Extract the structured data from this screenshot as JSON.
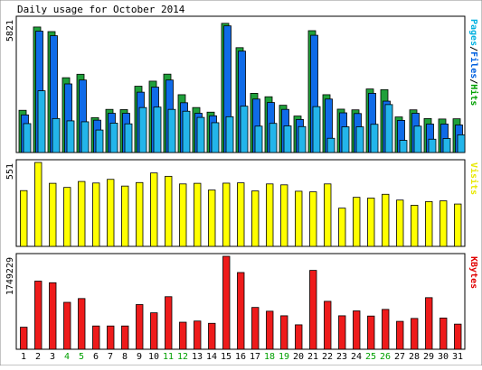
{
  "chart_data": [
    {
      "type": "bar",
      "title": "Daily usage for October 2014",
      "panel": "hits-files-pages",
      "ylabel_max": "5821",
      "ylim": [
        0,
        5821
      ],
      "legend": {
        "parts": [
          {
            "text": "Pages",
            "color": "#00B0E0"
          },
          {
            "text": "/",
            "color": "#000000"
          },
          {
            "text": "Files",
            "color": "#0060E0"
          },
          {
            "text": "/",
            "color": "#000000"
          },
          {
            "text": "Hits",
            "color": "#00A000"
          }
        ],
        "placement": "right"
      },
      "categories": [
        "1",
        "2",
        "3",
        "4",
        "5",
        "6",
        "7",
        "8",
        "9",
        "10",
        "11",
        "12",
        "13",
        "14",
        "15",
        "16",
        "17",
        "18",
        "19",
        "20",
        "21",
        "22",
        "23",
        "24",
        "25",
        "26",
        "27",
        "28",
        "29",
        "30",
        "31"
      ],
      "weekend_days": [
        "4",
        "5",
        "11",
        "12",
        "18",
        "19",
        "25",
        "26"
      ],
      "series": [
        {
          "name": "Hits",
          "color": "#1FA03A",
          "values": [
            1840,
            5470,
            5270,
            3260,
            3410,
            1520,
            1880,
            1870,
            2890,
            3110,
            3415,
            2520,
            1960,
            1760,
            5630,
            4570,
            2580,
            2430,
            2060,
            1590,
            5310,
            2520,
            1890,
            1860,
            2770,
            2740,
            1550,
            1860,
            1480,
            1460,
            1470
          ]
        },
        {
          "name": "Files",
          "color": "#0F6BE8",
          "values": [
            1640,
            5290,
            5090,
            2990,
            3160,
            1410,
            1710,
            1710,
            2630,
            2850,
            3160,
            2170,
            1710,
            1600,
            5520,
            4420,
            2330,
            2180,
            1880,
            1440,
            5110,
            2330,
            1730,
            1700,
            2580,
            2240,
            1400,
            1710,
            1240,
            1240,
            1200
          ]
        },
        {
          "name": "Pages",
          "color": "#23B5EA",
          "values": [
            1260,
            2690,
            1480,
            1380,
            1340,
            980,
            1280,
            1250,
            1960,
            1980,
            1880,
            1800,
            1530,
            1300,
            1560,
            2020,
            1150,
            1270,
            1160,
            1130,
            2000,
            620,
            1120,
            1120,
            1230,
            2090,
            530,
            1150,
            580,
            610,
            770
          ]
        }
      ]
    },
    {
      "type": "bar",
      "panel": "visits",
      "ylabel_max": "551",
      "ylim": [
        0,
        551
      ],
      "legend": {
        "parts": [
          {
            "text": "Visits",
            "color": "#E8E800"
          }
        ],
        "placement": "right"
      },
      "categories": [
        "1",
        "2",
        "3",
        "4",
        "5",
        "6",
        "7",
        "8",
        "9",
        "10",
        "11",
        "12",
        "13",
        "14",
        "15",
        "16",
        "17",
        "18",
        "19",
        "20",
        "21",
        "22",
        "23",
        "24",
        "25",
        "26",
        "27",
        "28",
        "29",
        "30",
        "31"
      ],
      "weekend_days": [
        "4",
        "5",
        "11",
        "12",
        "18",
        "19",
        "25",
        "26"
      ],
      "series": [
        {
          "name": "Visits",
          "color": "#FFFF00",
          "values": [
            366,
            551,
            414,
            387,
            426,
            416,
            440,
            396,
            419,
            482,
            460,
            410,
            414,
            370,
            415,
            417,
            364,
            410,
            404,
            362,
            358,
            410,
            251,
            322,
            317,
            342,
            304,
            270,
            294,
            299,
            278
          ]
        }
      ]
    },
    {
      "type": "bar",
      "panel": "kbytes",
      "ylabel_max": "1749229",
      "ylim": [
        0,
        1749229
      ],
      "legend": {
        "parts": [
          {
            "text": "KBytes",
            "color": "#E00000"
          }
        ],
        "placement": "right"
      },
      "categories": [
        "1",
        "2",
        "3",
        "4",
        "5",
        "6",
        "7",
        "8",
        "9",
        "10",
        "11",
        "12",
        "13",
        "14",
        "15",
        "16",
        "17",
        "18",
        "19",
        "20",
        "21",
        "22",
        "23",
        "24",
        "25",
        "26",
        "27",
        "28",
        "29",
        "30",
        "31"
      ],
      "category_colors": [
        "#000000",
        "#000000",
        "#000000",
        "#00A000",
        "#00A000",
        "#000000",
        "#000000",
        "#000000",
        "#000000",
        "#000000",
        "#00A000",
        "#00A000",
        "#000000",
        "#000000",
        "#000000",
        "#000000",
        "#000000",
        "#00A000",
        "#00A000",
        "#000000",
        "#000000",
        "#000000",
        "#000000",
        "#000000",
        "#00A000",
        "#00A000",
        "#000000",
        "#000000",
        "#000000",
        "#000000",
        "#000000"
      ],
      "series": [
        {
          "name": "KBytes",
          "color": "#EE1B1B",
          "values": [
            415000,
            1282000,
            1252000,
            883000,
            954000,
            438000,
            438000,
            438000,
            841000,
            686000,
            989000,
            509000,
            531000,
            488000,
            1749229,
            1444000,
            787000,
            716000,
            630000,
            460000,
            1484000,
            902000,
            630000,
            722000,
            625000,
            750000,
            525000,
            580000,
            971000,
            588000,
            473000
          ]
        }
      ]
    }
  ]
}
